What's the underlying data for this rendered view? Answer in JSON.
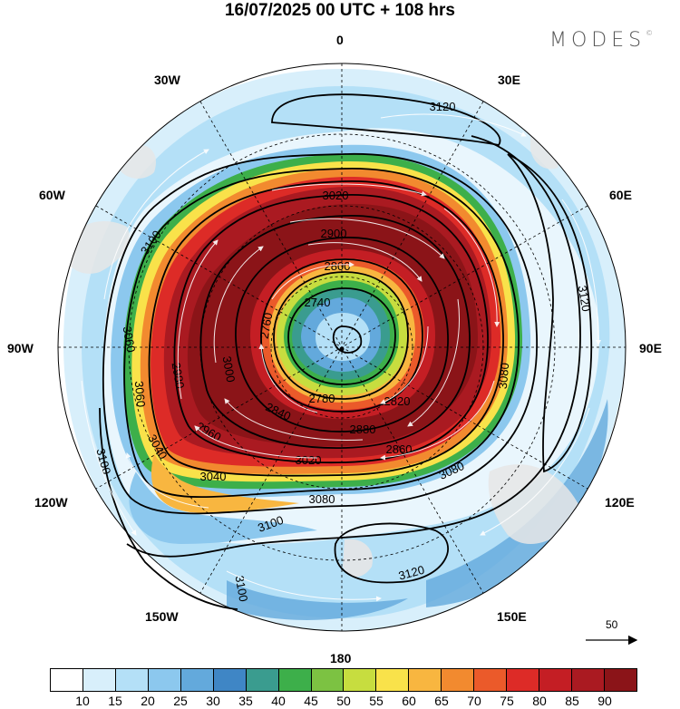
{
  "title": "16/07/2025  00 UTC  + 108 hrs",
  "brand": "MODES",
  "brand_mark": "©",
  "longitude_labels": {
    "lon_0": "0",
    "lon_30e": "30E",
    "lon_60e": "60E",
    "lon_90e": "90E",
    "lon_120e": "120E",
    "lon_150e": "150E",
    "lon_180": "180",
    "lon_150w": "150W",
    "lon_120w": "120W",
    "lon_90w": "90W",
    "lon_60w": "60W",
    "lon_30w": "30W"
  },
  "contour_labels": [
    "3120",
    "3120",
    "3120",
    "3100",
    "3100",
    "3100",
    "3100",
    "3080",
    "3080",
    "3080",
    "3060",
    "3060",
    "3040",
    "3040",
    "3020",
    "3020",
    "3000",
    "2980",
    "2960",
    "2900",
    "2880",
    "2860",
    "2840",
    "2820",
    "2800",
    "2780",
    "2760",
    "2740"
  ],
  "reference_vector": {
    "label": "50"
  },
  "colorbar": {
    "colors": [
      "#ffffff",
      "#d8effb",
      "#b4e0f7",
      "#8cc8ee",
      "#63a9dc",
      "#3f86c5",
      "#3a9c8f",
      "#3daf4a",
      "#7cc242",
      "#c7dd3f",
      "#f9e24a",
      "#f8b640",
      "#f28a2f",
      "#eb5a2a",
      "#dd2b27",
      "#c41e24",
      "#aa1a21",
      "#8b1418"
    ],
    "labels": [
      "10",
      "15",
      "20",
      "25",
      "30",
      "35",
      "40",
      "45",
      "50",
      "55",
      "60",
      "65",
      "70",
      "75",
      "80",
      "85",
      "90"
    ]
  }
}
